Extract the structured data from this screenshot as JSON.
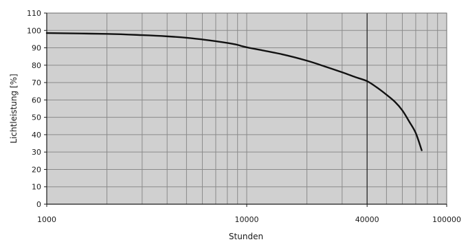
{
  "chart_data": {
    "type": "line",
    "title": "",
    "xlabel": "Stunden",
    "ylabel": "Lichtleistung [%]",
    "x_scale": "log",
    "xlim": [
      1000,
      100000
    ],
    "ylim": [
      0,
      110
    ],
    "x_tick_labels": [
      "1000",
      "10000",
      "40000",
      "100000"
    ],
    "x_tick_values": [
      1000,
      10000,
      40000,
      100000
    ],
    "y_tick_values": [
      0,
      10,
      20,
      30,
      40,
      50,
      60,
      70,
      80,
      90,
      100,
      110
    ],
    "grid": true,
    "highlight_x": 40000,
    "colors": {
      "plot_background": "#d0d0d0",
      "grid": "#8a8a8a",
      "highlight_line": "#333333",
      "line": "#111111"
    },
    "series": [
      {
        "x": [
          1000,
          2000,
          3000,
          4000,
          5000,
          6000,
          7000,
          8000,
          9000,
          10000,
          15000,
          20000,
          25000,
          30000,
          35000,
          40000,
          45000,
          50000,
          55000,
          60000,
          65000,
          70000,
          75000
        ],
        "y": [
          98.5,
          98,
          97.3,
          96.6,
          95.8,
          94.8,
          93.8,
          92.8,
          91.7,
          90.3,
          86.3,
          82.6,
          79,
          75.9,
          73.1,
          70.8,
          67,
          63,
          59,
          54,
          47.5,
          41,
          31
        ]
      }
    ]
  }
}
